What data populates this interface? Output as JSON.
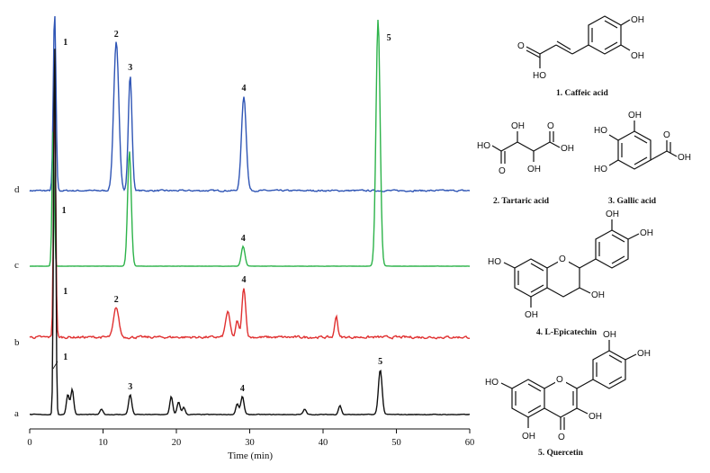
{
  "chart_data": {
    "type": "line",
    "title": "",
    "xlabel": "Time (min)",
    "ylabel": "",
    "xlim": [
      0,
      60
    ],
    "xticks": [
      "0",
      "10",
      "20",
      "30",
      "40",
      "50",
      "60"
    ],
    "grid": false,
    "legend": "none",
    "series": [
      {
        "name": "d",
        "color": "#2f55b5",
        "baseline": 0,
        "noise": 1.4,
        "peaks": [
          {
            "label": "1",
            "t": 3.4,
            "height": 200,
            "width": 0.18
          },
          {
            "label": "2",
            "t": 11.8,
            "height": 165,
            "width": 0.35
          },
          {
            "label": "3",
            "t": 13.7,
            "height": 128,
            "width": 0.25
          },
          {
            "label": "4",
            "t": 29.2,
            "height": 105,
            "width": 0.32
          }
        ]
      },
      {
        "name": "c",
        "color": "#2db34a",
        "baseline": 0,
        "noise": 0.25,
        "peaks": [
          {
            "label": "1",
            "t": 3.2,
            "height": 150,
            "width": 0.15
          },
          {
            "label": "",
            "t": 13.6,
            "height": 128,
            "width": 0.25
          },
          {
            "label": "4",
            "t": 29.1,
            "height": 22,
            "width": 0.25
          },
          {
            "label": "5",
            "t": 47.5,
            "height": 275,
            "width": 0.28
          }
        ]
      },
      {
        "name": "b",
        "color": "#e03030",
        "baseline": 0,
        "noise": 2.2,
        "peaks": [
          {
            "label": "1",
            "t": 3.4,
            "height": 270,
            "width": 0.15
          },
          {
            "label": "2",
            "t": 11.8,
            "height": 33,
            "width": 0.35
          },
          {
            "label": "",
            "t": 27.0,
            "height": 28,
            "width": 0.3
          },
          {
            "label": "",
            "t": 28.3,
            "height": 18,
            "width": 0.2
          },
          {
            "label": "4",
            "t": 29.2,
            "height": 55,
            "width": 0.25
          },
          {
            "label": "",
            "t": 41.8,
            "height": 24,
            "width": 0.2
          }
        ]
      },
      {
        "name": "a",
        "color": "#111111",
        "baseline": 0,
        "noise": 0.6,
        "peaks": [
          {
            "label": "1",
            "t": 3.4,
            "height": 420,
            "width": 0.14
          },
          {
            "label": "",
            "t": 5.2,
            "height": 22,
            "width": 0.2
          },
          {
            "label": "",
            "t": 5.8,
            "height": 28,
            "width": 0.2
          },
          {
            "label": "",
            "t": 9.8,
            "height": 6,
            "width": 0.2
          },
          {
            "label": "3",
            "t": 13.7,
            "height": 22,
            "width": 0.22
          },
          {
            "label": "",
            "t": 19.3,
            "height": 20,
            "width": 0.2
          },
          {
            "label": "",
            "t": 20.3,
            "height": 14,
            "width": 0.2
          },
          {
            "label": "",
            "t": 21.0,
            "height": 8,
            "width": 0.2
          },
          {
            "label": "",
            "t": 28.3,
            "height": 12,
            "width": 0.2
          },
          {
            "label": "4",
            "t": 29.0,
            "height": 20,
            "width": 0.22
          },
          {
            "label": "",
            "t": 37.5,
            "height": 6,
            "width": 0.2
          },
          {
            "label": "",
            "t": 42.3,
            "height": 10,
            "width": 0.2
          },
          {
            "label": "5",
            "t": 47.8,
            "height": 50,
            "width": 0.25
          }
        ]
      }
    ]
  },
  "compounds": [
    {
      "caption": "1. Caffeic acid",
      "groups": [
        "OH",
        "OH",
        "O",
        "HO"
      ]
    },
    {
      "caption": "2. Tartaric acid",
      "groups": [
        "OH",
        "O",
        "HO",
        "OH",
        "O",
        "OH"
      ]
    },
    {
      "caption": "3. Gallic acid",
      "groups": [
        "HO",
        "OH",
        "HO",
        "O",
        "OH"
      ]
    },
    {
      "caption": "4. L-Epicatechin",
      "groups": [
        "OH",
        "OH",
        "HO",
        "O",
        "OH",
        "OH"
      ]
    },
    {
      "caption": "5. Quercetin",
      "groups": [
        "OH",
        "OH",
        "HO",
        "O",
        "OH",
        "OH",
        "O"
      ]
    }
  ]
}
